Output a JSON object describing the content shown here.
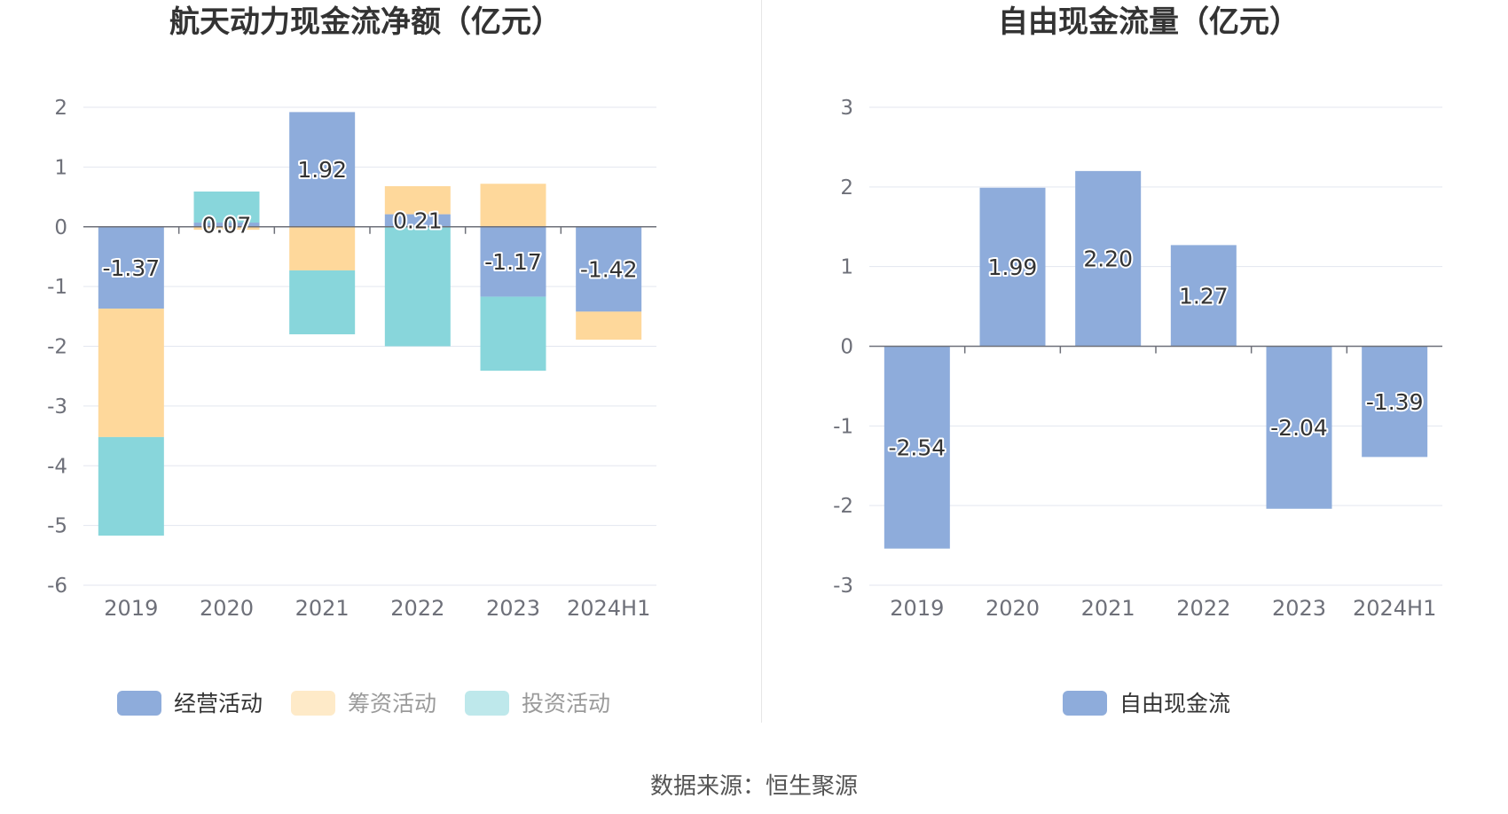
{
  "source_text": "数据来源：恒生聚源",
  "chart_data": [
    {
      "type": "bar",
      "stacked": true,
      "title": "航天动力现金流净额（亿元）",
      "categories": [
        "2019",
        "2020",
        "2021",
        "2022",
        "2023",
        "2024H1"
      ],
      "ylim": [
        -6,
        2
      ],
      "yticks": [
        2,
        1,
        0,
        -1,
        -2,
        -3,
        -4,
        -5,
        -6
      ],
      "grid": true,
      "legend_position": "bottom-center",
      "series": [
        {
          "name": "经营活动",
          "color": "#8eacdb",
          "values": [
            -1.37,
            0.07,
            1.92,
            0.21,
            -1.17,
            -1.42
          ],
          "labels": [
            "-1.37",
            "0.07",
            "1.92",
            "0.21",
            "-1.17",
            "-1.42"
          ]
        },
        {
          "name": "筹资活动",
          "color": "#fed89b",
          "values": [
            -2.15,
            -0.05,
            -0.73,
            0.47,
            0.72,
            -0.47
          ]
        },
        {
          "name": "投资活动",
          "color": "#88d6db",
          "values": [
            -1.65,
            0.52,
            -1.07,
            -2.0,
            -1.24,
            0.0
          ]
        }
      ]
    },
    {
      "type": "bar",
      "title": "自由现金流量（亿元）",
      "categories": [
        "2019",
        "2020",
        "2021",
        "2022",
        "2023",
        "2024H1"
      ],
      "ylim": [
        -3,
        3
      ],
      "yticks": [
        3,
        2,
        1,
        0,
        -1,
        -2,
        -3
      ],
      "grid": true,
      "legend_position": "bottom-center",
      "series": [
        {
          "name": "自由现金流",
          "color": "#8eacdb",
          "values": [
            -2.54,
            1.99,
            2.2,
            1.27,
            -2.04,
            -1.39
          ],
          "labels": [
            "-2.54",
            "1.99",
            "2.20",
            "1.27",
            "-2.04",
            "-1.39"
          ]
        }
      ]
    }
  ]
}
